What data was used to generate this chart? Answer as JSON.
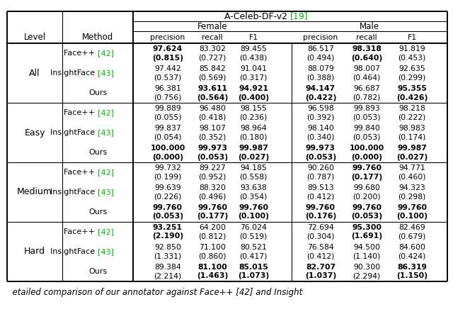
{
  "levels": [
    "All",
    "Easy",
    "Medium",
    "Hard"
  ],
  "methods_order": [
    "Face++",
    "InsightFace",
    "Ours"
  ],
  "col_labels": [
    "precision",
    "recall",
    "F1"
  ],
  "data": {
    "All": {
      "Face++": {
        "values": [
          "97.624",
          "83.302",
          "89.455",
          "86.517",
          "98.318",
          "91.819"
        ],
        "parens": [
          "(0.815)",
          "(0.727)",
          "(0.438)",
          "(0.494)",
          "(0.640)",
          "(0.453)"
        ],
        "bold_values": [
          true,
          false,
          false,
          false,
          true,
          false
        ],
        "bold_parens": [
          true,
          false,
          false,
          false,
          true,
          false
        ]
      },
      "InsightFace": {
        "values": [
          "97.442",
          "85.842",
          "91.041",
          "88.079",
          "98.007",
          "92.635"
        ],
        "parens": [
          "(0.537)",
          "(0.569)",
          "(0.317)",
          "(0.388)",
          "(0.464)",
          "(0.299)"
        ],
        "bold_values": [
          false,
          false,
          false,
          false,
          false,
          false
        ],
        "bold_parens": [
          false,
          false,
          false,
          false,
          false,
          false
        ]
      },
      "Ours": {
        "values": [
          "96.381",
          "93.611",
          "94.921",
          "94.147",
          "96.687",
          "95.355"
        ],
        "parens": [
          "(0.756)",
          "(0.564)",
          "(0.400)",
          "(0.422)",
          "(0.782)",
          "(0.426)"
        ],
        "bold_values": [
          false,
          true,
          true,
          true,
          false,
          true
        ],
        "bold_parens": [
          false,
          true,
          true,
          true,
          false,
          true
        ]
      }
    },
    "Easy": {
      "Face++": {
        "values": [
          "99.889",
          "96.480",
          "98.155",
          "96.598",
          "99.893",
          "98.218"
        ],
        "parens": [
          "(0.055)",
          "(0.418)",
          "(0.236)",
          "(0.392)",
          "(0.053)",
          "(0.222)"
        ],
        "bold_values": [
          false,
          false,
          false,
          false,
          false,
          false
        ],
        "bold_parens": [
          false,
          false,
          false,
          false,
          false,
          false
        ]
      },
      "InsightFace": {
        "values": [
          "99.837",
          "98.107",
          "98.964",
          "98.140",
          "99.840",
          "98.983"
        ],
        "parens": [
          "(0.054)",
          "(0.352)",
          "(0.180)",
          "(0.340)",
          "(0.053)",
          "(0.174)"
        ],
        "bold_values": [
          false,
          false,
          false,
          false,
          false,
          false
        ],
        "bold_parens": [
          false,
          false,
          false,
          false,
          false,
          false
        ]
      },
      "Ours": {
        "values": [
          "100.000",
          "99.973",
          "99.987",
          "99.973",
          "100.000",
          "99.987"
        ],
        "parens": [
          "(0.000)",
          "(0.053)",
          "(0.027)",
          "(0.053)",
          "(0.000)",
          "(0.027)"
        ],
        "bold_values": [
          true,
          true,
          true,
          true,
          true,
          true
        ],
        "bold_parens": [
          true,
          true,
          true,
          true,
          true,
          true
        ]
      }
    },
    "Medium": {
      "Face++": {
        "values": [
          "99.732",
          "89.227",
          "94.185",
          "90.260",
          "99.760",
          "94.771"
        ],
        "parens": [
          "(0.199)",
          "(0.952)",
          "(0.558)",
          "(0.787)",
          "(0.177)",
          "(0.460)"
        ],
        "bold_values": [
          false,
          false,
          false,
          false,
          true,
          false
        ],
        "bold_parens": [
          false,
          false,
          false,
          false,
          true,
          false
        ]
      },
      "InsightFace": {
        "values": [
          "99.639",
          "88.320",
          "93.638",
          "89.513",
          "99.680",
          "94.323"
        ],
        "parens": [
          "(0.226)",
          "(0.496)",
          "(0.354)",
          "(0.412)",
          "(0.200)",
          "(0.298)"
        ],
        "bold_values": [
          false,
          false,
          false,
          false,
          false,
          false
        ],
        "bold_parens": [
          false,
          false,
          false,
          false,
          false,
          false
        ]
      },
      "Ours": {
        "values": [
          "99.760",
          "99.760",
          "99.760",
          "99.760",
          "99.760",
          "99.760"
        ],
        "parens": [
          "(0.053)",
          "(0.177)",
          "(0.100)",
          "(0.176)",
          "(0.053)",
          "(0.100)"
        ],
        "bold_values": [
          true,
          true,
          true,
          true,
          true,
          true
        ],
        "bold_parens": [
          true,
          true,
          true,
          true,
          true,
          true
        ]
      }
    },
    "Hard": {
      "Face++": {
        "values": [
          "93.251",
          "64.200",
          "76.024",
          "72.694",
          "95.300",
          "82.469"
        ],
        "parens": [
          "(2.190)",
          "(0.812)",
          "(0.519)",
          "(0.304)",
          "(1.691)",
          "(0.679)"
        ],
        "bold_values": [
          true,
          false,
          false,
          false,
          true,
          false
        ],
        "bold_parens": [
          true,
          false,
          false,
          false,
          true,
          false
        ]
      },
      "InsightFace": {
        "values": [
          "92.850",
          "71.100",
          "80.521",
          "76.584",
          "94.500",
          "84.600"
        ],
        "parens": [
          "(1.331)",
          "(0.860)",
          "(0.417)",
          "(0.412)",
          "(1.140)",
          "(0.424)"
        ],
        "bold_values": [
          false,
          false,
          false,
          false,
          false,
          false
        ],
        "bold_parens": [
          false,
          false,
          false,
          false,
          false,
          false
        ]
      },
      "Ours": {
        "values": [
          "89.384",
          "81.100",
          "85.015",
          "82.707",
          "90.300",
          "86.319"
        ],
        "parens": [
          "(2.214)",
          "(1.463)",
          "(1.073)",
          "(1.037)",
          "(2.294)",
          "(1.150)"
        ],
        "bold_values": [
          false,
          true,
          true,
          true,
          false,
          true
        ],
        "bold_parens": [
          false,
          true,
          true,
          true,
          false,
          true
        ]
      }
    }
  },
  "green_color": "#00bb00",
  "bg_color": "white",
  "caption_text": "etailed comparison of our annotator against Face++ [42] and Insight"
}
